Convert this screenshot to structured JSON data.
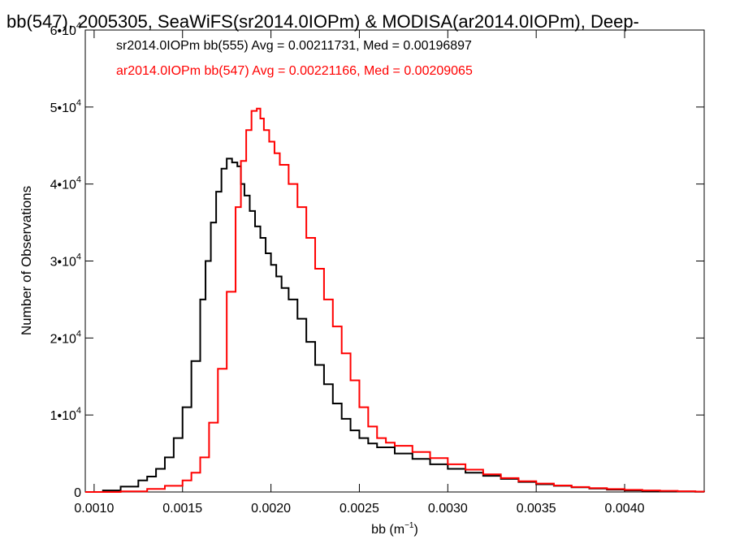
{
  "chart_data": {
    "type": "line",
    "title": "bb(547), 2005305, SeaWiFS(sr2014.0IOPm) & MODISA(ar2014.0IOPm), Deep-",
    "xlabel": "bb (m",
    "xlabel_exp": "−1",
    "xlabel_tail": ")",
    "ylabel": "Number of Observations",
    "xlim": [
      0.00095,
      0.00445
    ],
    "ylim": [
      0,
      60000
    ],
    "x_ticks": [
      {
        "value": 0.001,
        "label": "0.0010"
      },
      {
        "value": 0.0015,
        "label": "0.0015"
      },
      {
        "value": 0.002,
        "label": "0.0020"
      },
      {
        "value": 0.0025,
        "label": "0.0025"
      },
      {
        "value": 0.003,
        "label": "0.0030"
      },
      {
        "value": 0.0035,
        "label": "0.0035"
      },
      {
        "value": 0.004,
        "label": "0.0040"
      }
    ],
    "y_ticks": [
      {
        "value": 0,
        "base": "0",
        "exp": ""
      },
      {
        "value": 10000,
        "base": "1•10",
        "exp": "4"
      },
      {
        "value": 20000,
        "base": "2•10",
        "exp": "4"
      },
      {
        "value": 30000,
        "base": "3•10",
        "exp": "4"
      },
      {
        "value": 40000,
        "base": "4•10",
        "exp": "4"
      },
      {
        "value": 50000,
        "base": "5•10",
        "exp": "4"
      },
      {
        "value": 60000,
        "base": "6•10",
        "exp": "4"
      }
    ],
    "grid": false,
    "legend_position": "top-left",
    "series": [
      {
        "name": "sr2014.0IOPm bb(555) Avg = 0.00211731, Med = 0.00196897",
        "color": "#000000",
        "x": [
          0.00095,
          0.00105,
          0.00115,
          0.00125,
          0.0013,
          0.00135,
          0.0014,
          0.00145,
          0.0015,
          0.00155,
          0.0016,
          0.00163,
          0.00166,
          0.00169,
          0.00172,
          0.00175,
          0.00178,
          0.00181,
          0.00183,
          0.00185,
          0.00188,
          0.00191,
          0.00194,
          0.00197,
          0.002,
          0.00203,
          0.00206,
          0.0021,
          0.00215,
          0.0022,
          0.00225,
          0.0023,
          0.00235,
          0.0024,
          0.00245,
          0.0025,
          0.00255,
          0.0026,
          0.0027,
          0.0028,
          0.0029,
          0.003,
          0.0031,
          0.0032,
          0.0033,
          0.0034,
          0.0035,
          0.0036,
          0.0037,
          0.0038,
          0.0039,
          0.004,
          0.0041,
          0.0042,
          0.0043,
          0.0044,
          0.00445
        ],
        "values": [
          0,
          200,
          700,
          1500,
          2000,
          3000,
          4500,
          7000,
          11000,
          17000,
          25000,
          30000,
          35000,
          39000,
          42000,
          43300,
          42800,
          42300,
          40000,
          38500,
          36500,
          34500,
          33000,
          31000,
          29500,
          28000,
          26500,
          25000,
          22500,
          19500,
          16500,
          14000,
          11500,
          9500,
          8000,
          7000,
          6300,
          5800,
          5000,
          4300,
          3600,
          3000,
          2500,
          2100,
          1700,
          1300,
          1000,
          800,
          600,
          450,
          300,
          200,
          150,
          100,
          60,
          30,
          20
        ]
      },
      {
        "name": "ar2014.0IOPm bb(547) Avg = 0.00221166, Med = 0.00209065",
        "color": "#ff0000",
        "x": [
          0.00095,
          0.00115,
          0.0013,
          0.0014,
          0.0015,
          0.00155,
          0.0016,
          0.00165,
          0.0017,
          0.00175,
          0.0018,
          0.00183,
          0.00186,
          0.00189,
          0.00192,
          0.00194,
          0.00196,
          0.00199,
          0.00202,
          0.00205,
          0.0021,
          0.00215,
          0.0022,
          0.00225,
          0.0023,
          0.00235,
          0.0024,
          0.00245,
          0.0025,
          0.00255,
          0.0026,
          0.00265,
          0.0027,
          0.0028,
          0.0029,
          0.003,
          0.0031,
          0.0032,
          0.0033,
          0.0034,
          0.0035,
          0.0036,
          0.0037,
          0.0038,
          0.0039,
          0.004,
          0.0041,
          0.0042,
          0.0043,
          0.0044,
          0.00445
        ],
        "values": [
          0,
          80,
          400,
          800,
          1500,
          2500,
          4500,
          9000,
          16000,
          26000,
          37000,
          43000,
          47000,
          49500,
          49800,
          48500,
          47000,
          45500,
          44000,
          42500,
          40000,
          37000,
          33000,
          29000,
          25000,
          21500,
          18000,
          14500,
          11000,
          8500,
          7000,
          6400,
          6000,
          5200,
          4400,
          3600,
          2900,
          2300,
          1800,
          1400,
          1100,
          850,
          650,
          500,
          380,
          280,
          200,
          140,
          90,
          50,
          30
        ]
      }
    ]
  }
}
